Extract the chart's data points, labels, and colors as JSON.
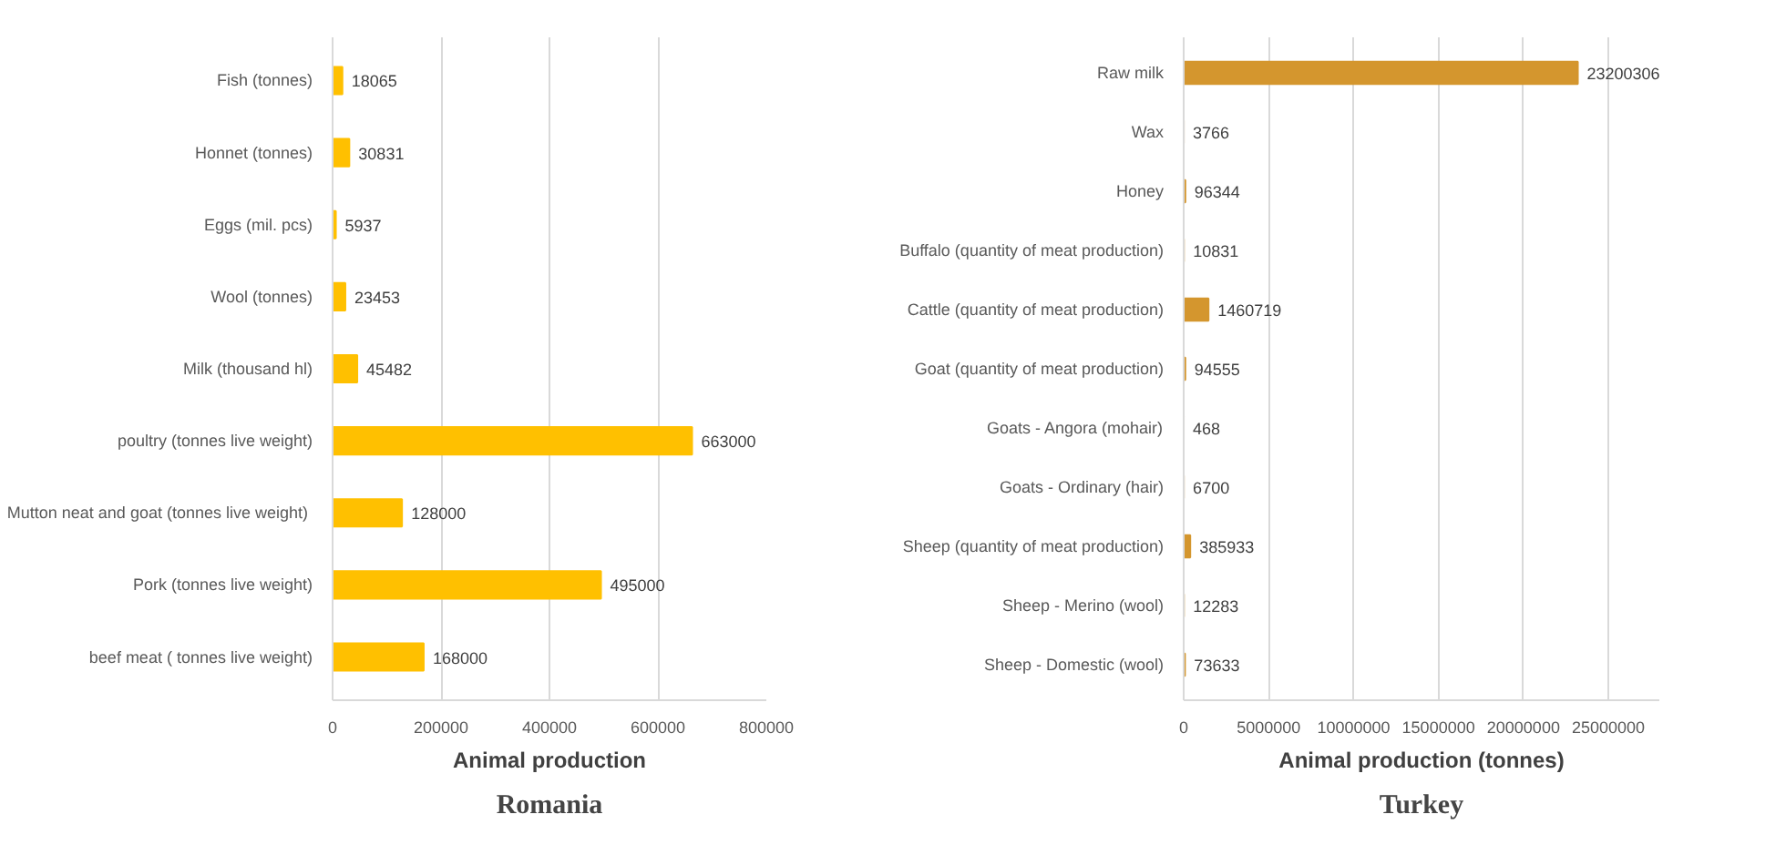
{
  "chart_data": [
    {
      "type": "bar",
      "orientation": "horizontal",
      "xlabel": "Animal production",
      "annotations": [
        "Romania"
      ],
      "categories": [
        "Fish (tonnes)",
        "Honnet (tonnes)",
        "Eggs (mil. pcs)",
        "Wool (tonnes)",
        "Milk (thousand hl)",
        "poultry (tonnes live weight)",
        "Mutton neat and goat  (tonnes live weight)",
        "Pork (tonnes live weight)",
        "beef meat ( tonnes live weight)"
      ],
      "values": [
        18065,
        30831,
        5937,
        23453,
        45482,
        663000,
        128000,
        495000,
        168000
      ],
      "color": "#ffc000",
      "xlim": [
        0,
        800000
      ],
      "xticks": [
        0,
        200000,
        400000,
        600000,
        800000
      ],
      "grid": "x",
      "data_labels": true
    },
    {
      "type": "bar",
      "orientation": "horizontal",
      "xlabel": "Animal production (tonnes)",
      "annotations": [
        "Turkey"
      ],
      "categories": [
        "Raw milk",
        "Wax",
        "Honey",
        "Buffalo (quantity of meat production)",
        "Cattle (quantity of meat production)",
        "Goat (quantity of meat production)",
        "Goats - Angora (mohair)",
        "Goats - Ordinary (hair)",
        "Sheep (quantity of meat production)",
        "Sheep - Merino (wool)",
        "Sheep - Domestic (wool)"
      ],
      "values": [
        23200306,
        3766,
        96344,
        10831,
        1460719,
        94555,
        468,
        6700,
        385933,
        12283,
        73633
      ],
      "color": "#d4962e",
      "xlim": [
        0,
        28000000
      ],
      "xticks": [
        0,
        5000000,
        10000000,
        15000000,
        20000000,
        25000000
      ],
      "grid": "x",
      "data_labels": true
    }
  ]
}
